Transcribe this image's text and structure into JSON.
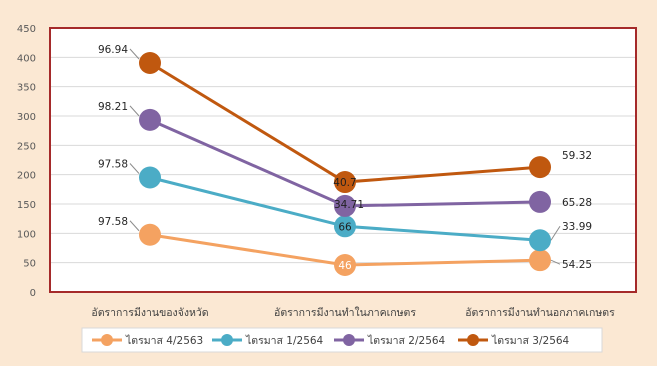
{
  "chart_data": {
    "type": "line",
    "categories": [
      "อัตราการมีงานของจังหวัด",
      "อัตราการมีงานทำในภาคเกษตร",
      "อัตราการมีงานทำนอกภาคเกษตร"
    ],
    "ylim": [
      0,
      450
    ],
    "yticks": [
      0,
      50,
      100,
      150,
      200,
      250,
      300,
      350,
      400,
      450
    ],
    "grid": true,
    "legend_position": "bottom",
    "series": [
      {
        "name": "ไตรมาส 4/2563",
        "color": "#f4a261",
        "values": [
          97.58,
          46,
          54.25
        ],
        "labels": [
          "97.58",
          "46",
          "54.25"
        ]
      },
      {
        "name": "ไตรมาส 1/2564",
        "color": "#4bacc6",
        "values": [
          195.16,
          112,
          88.24
        ],
        "labels": [
          "97.58",
          "66",
          "33.99"
        ]
      },
      {
        "name": "ไตรมาส 2/2564",
        "color": "#8064a2",
        "values": [
          293.37,
          146.71,
          153.52
        ],
        "labels": [
          "98.21",
          "34.71",
          "65.28"
        ]
      },
      {
        "name": "ไตรมาส 3/2564",
        "color": "#c0580f",
        "values": [
          390.31,
          187.41,
          212.84
        ],
        "labels": [
          "96.94",
          "40.7",
          "59.32"
        ]
      }
    ]
  }
}
